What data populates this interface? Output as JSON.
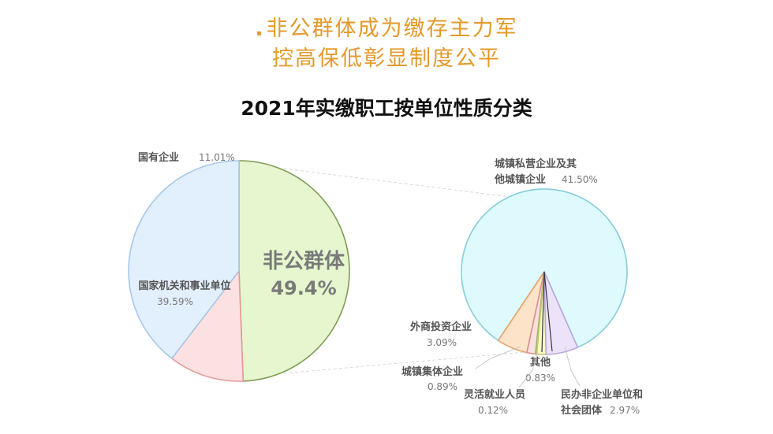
{
  "headline": {
    "bullet": ".",
    "line1": "非公群体成为缴存主力军",
    "line2": "控高保低彰显制度公平"
  },
  "chart_data": [
    {
      "type": "pie",
      "title": "2021年实缴职工按单位性质分类",
      "slices": [
        {
          "label": "非公群体",
          "value": 49.4,
          "display": "49.4%",
          "color": "#e6f6cf",
          "stroke": "#7f9c55"
        },
        {
          "label": "国有企业",
          "value": 11.01,
          "display": "11.01%",
          "color": "#fbe1e1",
          "stroke": "#e39b9b"
        },
        {
          "label": "国家机关和事业单位",
          "value": 39.59,
          "display": "39.59%",
          "color": "#e2effc",
          "stroke": "#a7c8ea"
        }
      ]
    },
    {
      "type": "pie",
      "slices": [
        {
          "label": "城镇私营企业及其他城镇企业",
          "label_lines": [
            "城镇私营企业及其",
            "他城镇企业"
          ],
          "value": 41.5,
          "display": "41.50%",
          "color": "#defafd",
          "stroke": "#86cdd8"
        },
        {
          "label": "外商投资企业",
          "value": 3.09,
          "display": "3.09%",
          "color": "#ece3fb",
          "stroke": "#b8a4e2"
        },
        {
          "label": "城镇集体企业",
          "value": 0.89,
          "display": "0.89%",
          "color": "#f7fac6",
          "stroke": "#c9c86a"
        },
        {
          "label": "灵活就业人员",
          "value": 0.12,
          "display": "0.12%",
          "color": "#e8f3d8",
          "stroke": "#90b86a"
        },
        {
          "label": "其他",
          "value": 0.83,
          "display": "0.83%",
          "color": "#fbe0e0",
          "stroke": "#d98f8f"
        },
        {
          "label": "民办非企业单位和社会团体",
          "label_lines": [
            "民办非企业单位和",
            "社会团体"
          ],
          "value": 2.97,
          "display": "2.97%",
          "color": "#fde3c8",
          "stroke": "#e6a466"
        }
      ]
    }
  ]
}
